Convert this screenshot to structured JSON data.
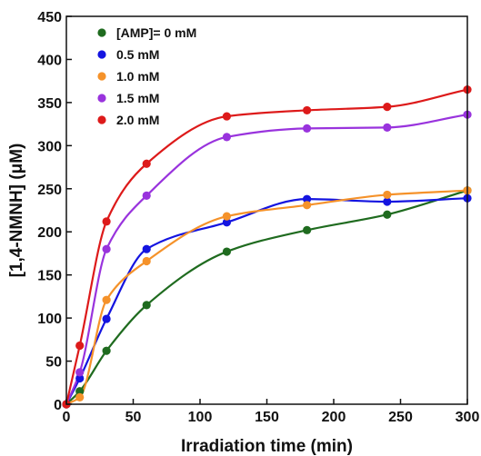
{
  "chart_data": {
    "type": "line",
    "title": "",
    "xlabel": "Irradiation time (min)",
    "ylabel": "[1,4-NMNH] (μM)",
    "xlim": [
      0,
      300
    ],
    "ylim": [
      0,
      450
    ],
    "xticks": [
      0,
      50,
      100,
      150,
      200,
      250,
      300
    ],
    "yticks": [
      0,
      50,
      100,
      150,
      200,
      250,
      300,
      350,
      400,
      450
    ],
    "x": [
      0,
      10,
      30,
      60,
      120,
      180,
      240,
      300
    ],
    "grid": false,
    "legend_position": "top-left",
    "series": [
      {
        "name": "[AMP]= 0 mM",
        "color": "#1f6b1f",
        "values": [
          0,
          15,
          62,
          115,
          177,
          202,
          220,
          248
        ]
      },
      {
        "name": "0.5 mM",
        "color": "#1414e0",
        "values": [
          0,
          30,
          99,
          180,
          211,
          238,
          235,
          239
        ]
      },
      {
        "name": "1.0 mM",
        "color": "#f5922a",
        "values": [
          0,
          8,
          121,
          166,
          218,
          231,
          243,
          248
        ]
      },
      {
        "name": "1.5 mM",
        "color": "#9933dd",
        "values": [
          0,
          37,
          180,
          242,
          310,
          320,
          321,
          336
        ]
      },
      {
        "name": "2.0 mM",
        "color": "#dd1a1a",
        "values": [
          0,
          68,
          212,
          279,
          334,
          341,
          345,
          365
        ]
      }
    ]
  }
}
